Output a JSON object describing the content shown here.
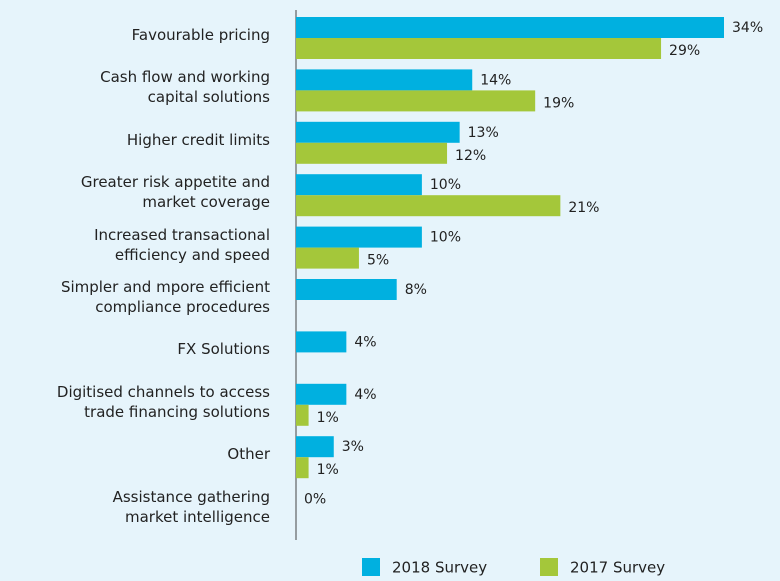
{
  "chart_data": {
    "type": "bar",
    "orientation": "horizontal",
    "categories": [
      "Favourable pricing",
      "Cash flow and working\ncapital solutions",
      "Higher credit limits",
      "Greater risk appetite and\nmarket coverage",
      "Increased transactional\nefficiency and speed",
      "Simpler and mpore efficient\ncompliance procedures",
      "FX Solutions",
      "Digitised channels to access\ntrade financing solutions",
      "Other",
      "Assistance gathering\nmarket intelligence"
    ],
    "series": [
      {
        "name": "2018 Survey",
        "color": "#00b0e0",
        "values": [
          34,
          14,
          13,
          10,
          10,
          8,
          4,
          4,
          3,
          0
        ],
        "value_labels": [
          "34%",
          "14%",
          "13%",
          "10%",
          "10%",
          "8%",
          "4%",
          "4%",
          "3%",
          "0%"
        ]
      },
      {
        "name": "2017 Survey",
        "color": "#a4c73a",
        "values": [
          29,
          19,
          12,
          21,
          5,
          null,
          null,
          1,
          1,
          null
        ],
        "value_labels": [
          "29%",
          "19%",
          "12%",
          "21%",
          "5%",
          null,
          null,
          "1%",
          "1%",
          null
        ]
      }
    ],
    "xlim": [
      0,
      34
    ],
    "legend": "bottom"
  }
}
